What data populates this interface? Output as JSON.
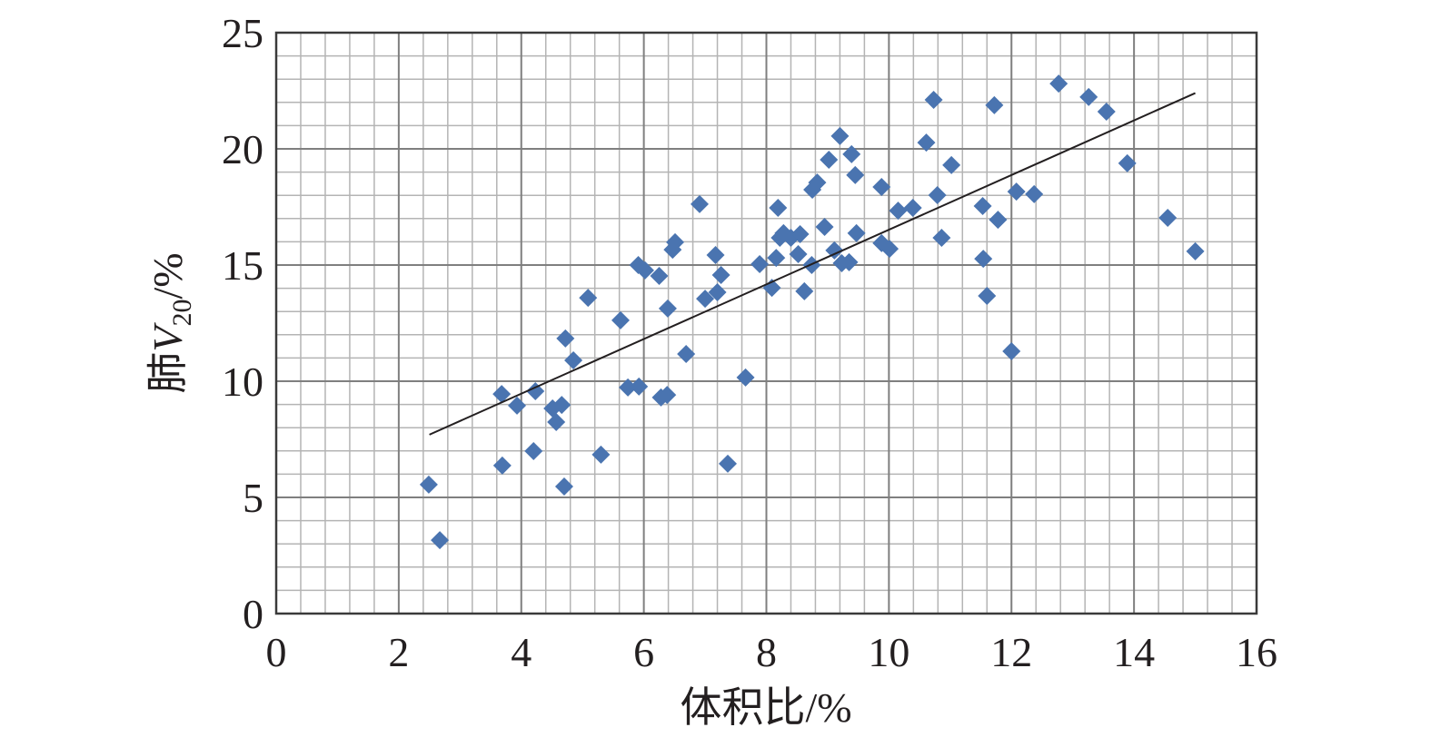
{
  "chart_data": {
    "type": "scatter",
    "xlabel": "体积比/%",
    "ylabel_parts": [
      "肺",
      "V",
      "20",
      "/%"
    ],
    "xlim": [
      0,
      16
    ],
    "xticks": [
      0,
      2,
      4,
      6,
      8,
      10,
      12,
      14,
      16
    ],
    "ylim": [
      0,
      25
    ],
    "yticks": [
      0,
      5,
      10,
      15,
      20,
      25
    ],
    "grid": true,
    "minor_grid": true,
    "series": [
      {
        "color": "#4a74b0",
        "x": [
          2.49,
          2.67,
          3.68,
          3.69,
          3.93,
          4.23,
          4.2,
          4.51,
          4.57,
          4.66,
          4.72,
          4.7,
          4.85,
          5.09,
          5.3,
          5.62,
          5.74,
          5.92,
          5.91,
          6.02,
          6.25,
          6.28,
          6.38,
          6.39,
          6.47,
          6.51,
          6.69,
          6.91,
          7.0,
          7.2,
          7.17,
          7.26,
          7.37,
          7.66,
          7.89,
          8.09,
          8.16,
          8.19,
          8.22,
          8.28,
          8.4,
          8.52,
          8.55,
          8.62,
          8.74,
          8.75,
          8.83,
          8.95,
          9.02,
          9.11,
          9.2,
          9.23,
          9.35,
          9.39,
          9.45,
          9.47,
          9.88,
          9.88,
          10.01,
          10.15,
          10.39,
          10.61,
          10.73,
          10.79,
          10.86,
          11.02,
          11.53,
          11.54,
          11.6,
          11.72,
          11.78,
          12.0,
          12.08,
          12.37,
          12.77,
          13.26,
          13.55,
          13.89,
          14.55,
          15.0
        ],
        "values": [
          5.55,
          3.16,
          9.45,
          6.37,
          8.95,
          9.57,
          6.99,
          8.83,
          8.24,
          8.98,
          11.84,
          5.47,
          10.9,
          13.59,
          6.84,
          12.62,
          9.73,
          9.77,
          15.0,
          14.77,
          14.53,
          9.3,
          9.41,
          13.13,
          15.66,
          15.98,
          11.17,
          17.62,
          13.55,
          13.83,
          15.43,
          14.57,
          6.45,
          10.16,
          15.04,
          14.02,
          15.31,
          17.46,
          16.17,
          16.37,
          16.17,
          15.47,
          16.33,
          13.87,
          15.0,
          18.24,
          18.55,
          16.64,
          19.53,
          15.63,
          20.55,
          15.08,
          15.12,
          19.77,
          18.87,
          16.37,
          18.36,
          15.94,
          15.7,
          17.34,
          17.46,
          20.27,
          22.11,
          18.01,
          16.17,
          19.3,
          17.54,
          15.27,
          13.67,
          21.88,
          16.95,
          11.29,
          18.16,
          18.05,
          22.81,
          22.23,
          21.6,
          19.38,
          17.03,
          15.59
        ]
      }
    ],
    "trendline": {
      "color": "#231f20",
      "x": [
        2.5,
        15
      ],
      "y": [
        7.7,
        22.4
      ]
    }
  }
}
